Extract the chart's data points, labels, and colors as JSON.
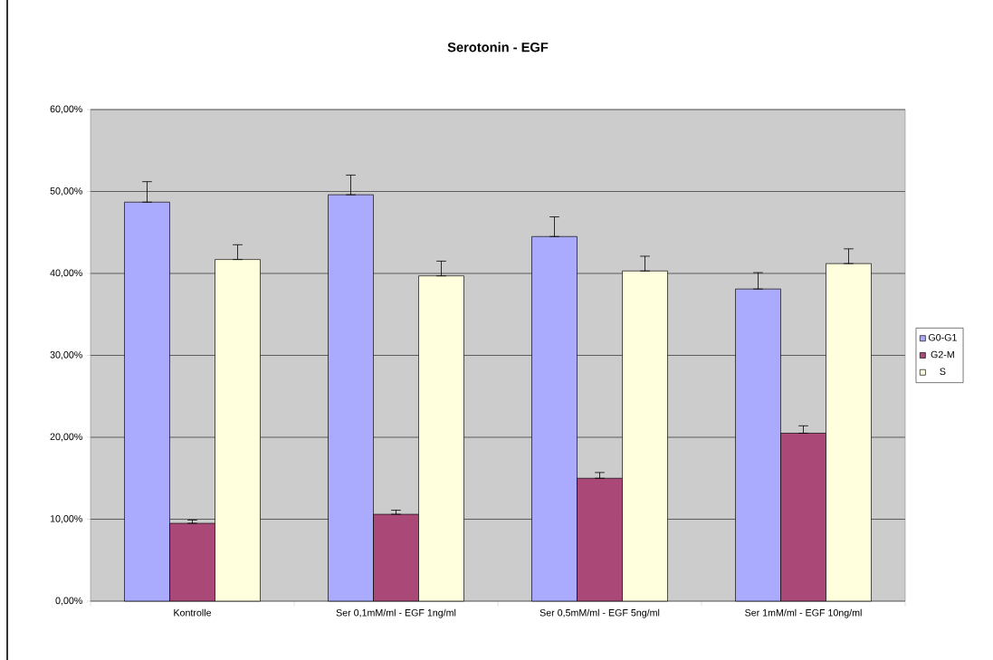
{
  "chart_data": {
    "type": "bar",
    "title": "Serotonin - EGF",
    "categories": [
      "Kontrolle",
      "Ser 0,1mM/ml - EGF 1ng/ml",
      "Ser 0,5mM/ml - EGF 5ng/ml",
      "Ser 1mM/ml - EGF 10ng/ml"
    ],
    "series": [
      {
        "name": "G0-G1",
        "color": "#aaaaff",
        "values": [
          48.7,
          49.6,
          44.5,
          38.1
        ],
        "errors": [
          [
            48.7,
            51.2
          ],
          [
            49.6,
            52.0
          ],
          [
            44.5,
            46.9
          ],
          [
            38.1,
            40.1
          ]
        ]
      },
      {
        "name": "G2-M",
        "color": "#aa4977",
        "values": [
          9.5,
          10.6,
          15.0,
          20.5
        ],
        "errors": [
          [
            9.5,
            9.9
          ],
          [
            10.6,
            11.1
          ],
          [
            15.0,
            15.7
          ],
          [
            20.5,
            21.4
          ]
        ]
      },
      {
        "name": "S",
        "color": "#ffffdd",
        "values": [
          41.7,
          39.7,
          40.3,
          41.2
        ],
        "errors": [
          [
            41.7,
            43.5
          ],
          [
            39.7,
            41.5
          ],
          [
            40.3,
            42.1
          ],
          [
            41.2,
            43.0
          ]
        ]
      }
    ],
    "ylim": [
      0,
      60
    ],
    "yticks": [
      {
        "value": 0,
        "label": "0,00%"
      },
      {
        "value": 10,
        "label": "10,00%"
      },
      {
        "value": 20,
        "label": "20,00%"
      },
      {
        "value": 30,
        "label": "30,00%"
      },
      {
        "value": 40,
        "label": "40,00%"
      },
      {
        "value": 50,
        "label": "50,00%"
      },
      {
        "value": 60,
        "label": "60,00%"
      }
    ],
    "grid": "y",
    "legend": "right"
  }
}
